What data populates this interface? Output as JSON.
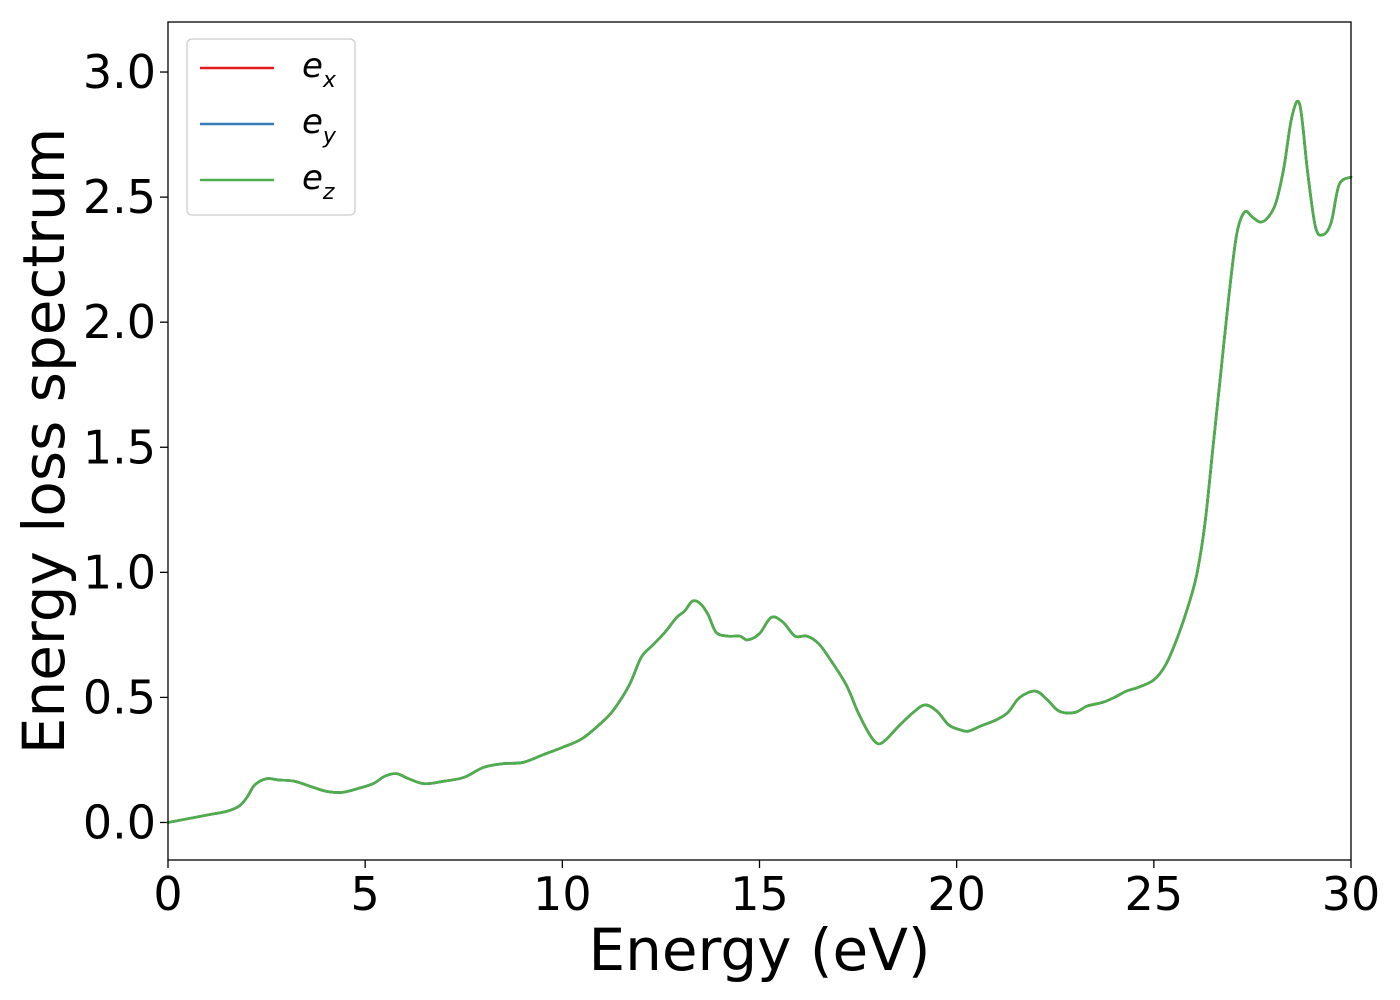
{
  "chart_data": {
    "type": "line",
    "title": "",
    "xlabel": "Energy (eV)",
    "ylabel": "Energy loss spectrum",
    "xlim": [
      0,
      30
    ],
    "ylim": [
      -0.15,
      3.2
    ],
    "x_ticks": [
      0,
      5,
      10,
      15,
      20,
      25,
      30
    ],
    "y_ticks": [
      0.0,
      0.5,
      1.0,
      1.5,
      2.0,
      2.5,
      3.0
    ],
    "x_tick_labels": [
      "0",
      "5",
      "10",
      "15",
      "20",
      "25",
      "30"
    ],
    "y_tick_labels": [
      "0.0",
      "0.5",
      "1.0",
      "1.5",
      "2.0",
      "2.5",
      "3.0"
    ],
    "grid": false,
    "legend_position": "top-left",
    "colors": {
      "ex": "#e41a1c",
      "ey": "#377eb8",
      "ez": "#4daf4a"
    },
    "series": [
      {
        "name": "ex",
        "legend_base": "e",
        "legend_sub": "x",
        "color_key": "ex"
      },
      {
        "name": "ey",
        "legend_base": "e",
        "legend_sub": "y",
        "color_key": "ey"
      },
      {
        "name": "ez",
        "legend_base": "e",
        "legend_sub": "z",
        "color_key": "ez"
      }
    ],
    "x": [
      0,
      0.5,
      1.0,
      1.5,
      1.8,
      2.0,
      2.2,
      2.5,
      2.8,
      3.2,
      3.6,
      4.0,
      4.4,
      4.8,
      5.2,
      5.5,
      5.8,
      6.1,
      6.5,
      7.0,
      7.5,
      8.0,
      8.5,
      9.0,
      9.5,
      10.0,
      10.5,
      11.0,
      11.3,
      11.7,
      12.0,
      12.3,
      12.6,
      12.9,
      13.1,
      13.3,
      13.5,
      13.7,
      13.9,
      14.2,
      14.5,
      14.7,
      15.0,
      15.3,
      15.6,
      15.9,
      16.2,
      16.5,
      16.8,
      17.2,
      17.5,
      17.8,
      18.0,
      18.2,
      18.5,
      18.9,
      19.2,
      19.5,
      19.8,
      20.1,
      20.3,
      20.6,
      21.0,
      21.3,
      21.6,
      22.0,
      22.3,
      22.6,
      23.0,
      23.3,
      23.7,
      24.0,
      24.3,
      24.6,
      25.0,
      25.3,
      25.6,
      25.9,
      26.1,
      26.3,
      26.5,
      26.7,
      26.9,
      27.1,
      27.3,
      27.5,
      27.7,
      27.9,
      28.1,
      28.3,
      28.5,
      28.7,
      28.9,
      29.1,
      29.3,
      29.5,
      29.7,
      30.0
    ],
    "y": [
      0.0,
      0.015,
      0.03,
      0.045,
      0.065,
      0.1,
      0.15,
      0.175,
      0.17,
      0.165,
      0.145,
      0.125,
      0.12,
      0.135,
      0.155,
      0.185,
      0.195,
      0.175,
      0.155,
      0.165,
      0.18,
      0.22,
      0.235,
      0.24,
      0.27,
      0.3,
      0.335,
      0.4,
      0.45,
      0.55,
      0.66,
      0.71,
      0.76,
      0.82,
      0.845,
      0.885,
      0.875,
      0.83,
      0.76,
      0.745,
      0.745,
      0.73,
      0.755,
      0.82,
      0.8,
      0.745,
      0.745,
      0.715,
      0.65,
      0.55,
      0.44,
      0.35,
      0.315,
      0.33,
      0.38,
      0.44,
      0.47,
      0.445,
      0.39,
      0.37,
      0.365,
      0.385,
      0.41,
      0.44,
      0.5,
      0.525,
      0.49,
      0.445,
      0.44,
      0.465,
      0.48,
      0.5,
      0.525,
      0.54,
      0.57,
      0.63,
      0.74,
      0.88,
      1.0,
      1.2,
      1.5,
      1.8,
      2.1,
      2.35,
      2.44,
      2.42,
      2.4,
      2.42,
      2.48,
      2.62,
      2.82,
      2.87,
      2.6,
      2.38,
      2.35,
      2.4,
      2.55,
      2.58
    ]
  }
}
